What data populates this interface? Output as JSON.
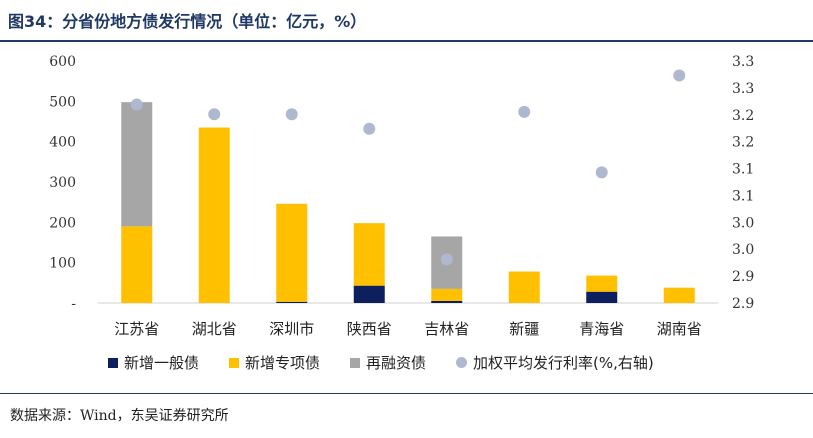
{
  "title": "图34：分省份地方债发行情况（单位：亿元，%）",
  "source": "数据来源：Wind，东吴证券研究所",
  "colors": {
    "general": "#0d1f5c",
    "special": "#ffc000",
    "refinance": "#a6a6a6",
    "rate": "#aeb9d0"
  },
  "chart_data": {
    "type": "bar",
    "stacked": true,
    "categories": [
      "江苏省",
      "湖北省",
      "深圳市",
      "陕西省",
      "吉林省",
      "新疆",
      "青海省",
      "湖南省"
    ],
    "series": [
      {
        "name": "新增一般债",
        "values": [
          0,
          0,
          3,
          43,
          5,
          0,
          28,
          0
        ]
      },
      {
        "name": "新增专项债",
        "values": [
          190,
          435,
          243,
          155,
          30,
          78,
          40,
          38
        ]
      },
      {
        "name": "再融资债",
        "values": [
          308,
          0,
          0,
          0,
          130,
          0,
          0,
          0
        ]
      }
    ],
    "line_series": {
      "name": "加权平均发行利率(%,右轴)",
      "style": "scatter",
      "axis": "right",
      "values": [
        3.26,
        3.24,
        3.24,
        3.21,
        2.94,
        3.245,
        3.12,
        3.32
      ]
    },
    "y_left": {
      "min": 0,
      "max": 600,
      "ticks": [
        0,
        100,
        200,
        300,
        400,
        500,
        600
      ],
      "tick_labels": [
        "-",
        "100",
        "200",
        "300",
        "400",
        "500",
        "600"
      ]
    },
    "y_right": {
      "min": 2.85,
      "max": 3.35,
      "tick_labels": [
        "2.9",
        "2.9",
        "3.0",
        "3.0",
        "3.1",
        "3.1",
        "3.2",
        "3.2",
        "3.3",
        "3.3"
      ]
    },
    "legend_position": "bottom",
    "grid": false
  }
}
